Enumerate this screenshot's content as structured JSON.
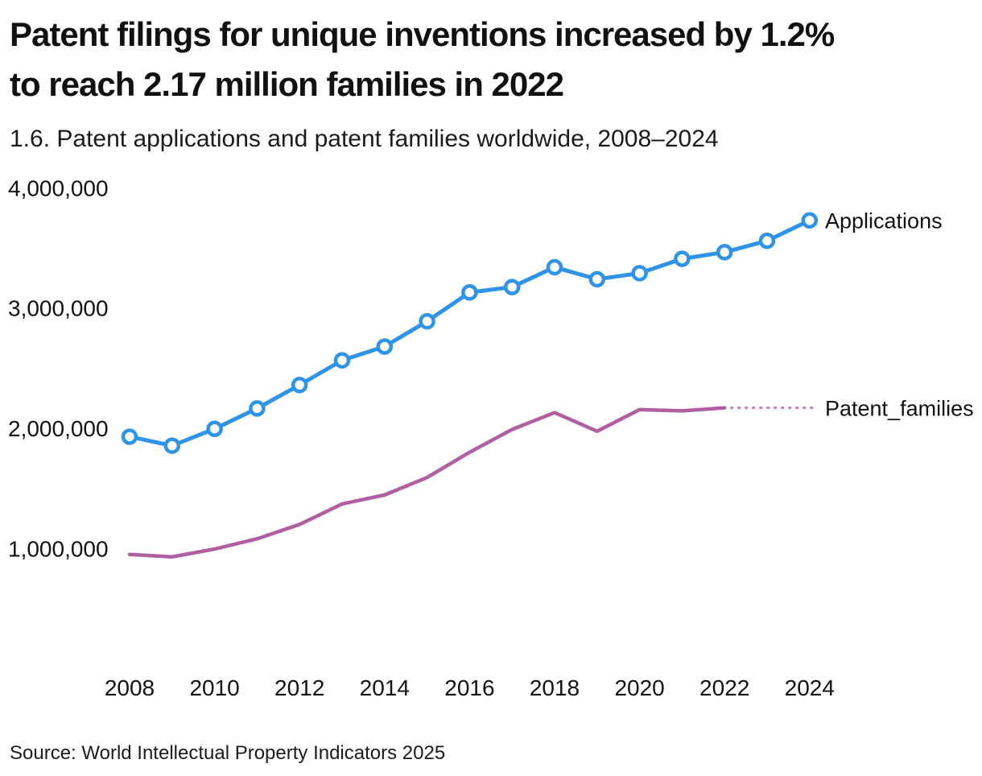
{
  "header": {
    "title_lines": [
      "Patent filings for unique inventions increased by 1.2%",
      "to reach 2.17 million families in 2022"
    ],
    "subtitle": "1.6. Patent applications and patent families worldwide, 2008–2024"
  },
  "footer": {
    "source": "Source: World Intellectual Property Indicators 2025"
  },
  "chart_data": {
    "type": "line",
    "title": "Patent filings for unique inventions increased by 1.2% to reach 2.17 million families in 2022",
    "subtitle": "1.6. Patent applications and patent families worldwide, 2008–2024",
    "xlabel": "",
    "ylabel": "",
    "grid": false,
    "legend_position": "direct-labels-right",
    "xlim": [
      2008,
      2024
    ],
    "ylim": [
      900000,
      4200000
    ],
    "xticks": [
      2008,
      2010,
      2012,
      2014,
      2016,
      2018,
      2020,
      2022,
      2024
    ],
    "yticks": [
      {
        "value": 1000000,
        "label": "1,000,000"
      },
      {
        "value": 2000000,
        "label": "2,000,000"
      },
      {
        "value": 3000000,
        "label": "3,000,000"
      },
      {
        "value": 4000000,
        "label": "4,000,000"
      }
    ],
    "series": [
      {
        "name": "Applications",
        "color": "#2F94E8",
        "marker": "open-circle",
        "line_style": "solid",
        "years": [
          2008,
          2009,
          2010,
          2011,
          2012,
          2013,
          2014,
          2015,
          2016,
          2017,
          2018,
          2019,
          2020,
          2021,
          2022,
          2023,
          2024
        ],
        "values": [
          1930000,
          1855000,
          1995000,
          2165000,
          2360000,
          2565000,
          2680000,
          2890000,
          3130000,
          3175000,
          3340000,
          3240000,
          3290000,
          3410000,
          3465000,
          3560000,
          3730000
        ]
      },
      {
        "name": "Patent_families",
        "color": "#B05FA3",
        "marker": "none",
        "line_style": "solid",
        "label_connector": {
          "style": "dotted",
          "color": "#C77FB8"
        },
        "years": [
          2008,
          2009,
          2010,
          2011,
          2012,
          2013,
          2014,
          2015,
          2016,
          2017,
          2018,
          2019,
          2020,
          2021,
          2022
        ],
        "values": [
          950000,
          930000,
          995000,
          1080000,
          1200000,
          1370000,
          1445000,
          1590000,
          1800000,
          1990000,
          2130000,
          1975000,
          2155000,
          2145000,
          2170000
        ]
      }
    ]
  }
}
